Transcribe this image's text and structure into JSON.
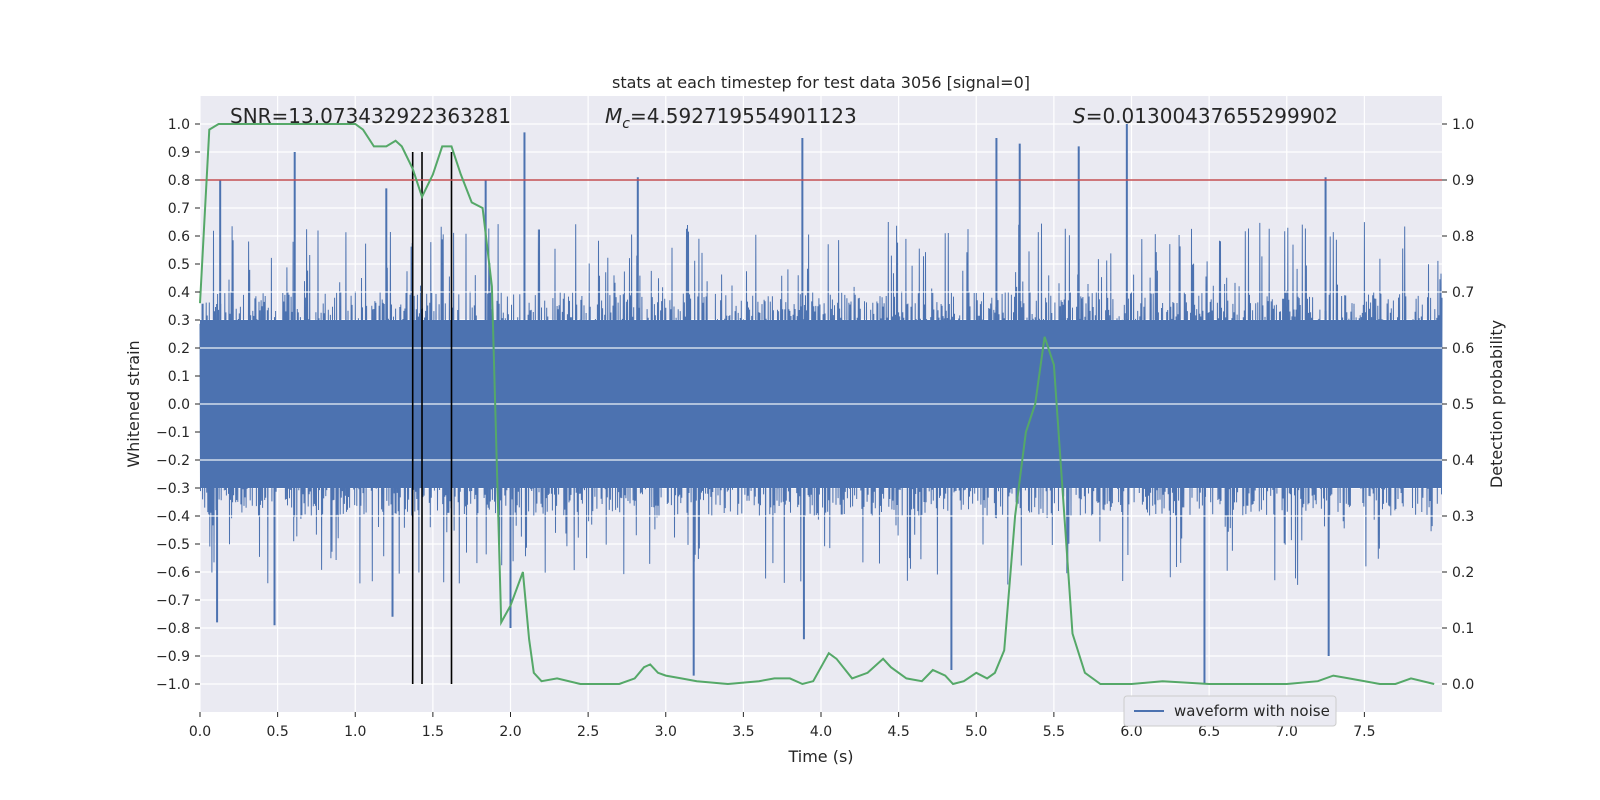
{
  "chart_data": {
    "type": "line",
    "title": "stats at each timestep for test data 3056 [signal=0]",
    "xlabel": "Time (s)",
    "ylabel": "Whitened strain",
    "y2label": "Detection probability",
    "xlim": [
      0.0,
      8.0
    ],
    "ylim": [
      -1.1,
      1.1
    ],
    "y2lim": [
      -0.05,
      1.05
    ],
    "xticks": [
      0.0,
      0.5,
      1.0,
      1.5,
      2.0,
      2.5,
      3.0,
      3.5,
      4.0,
      4.5,
      5.0,
      5.5,
      6.0,
      6.5,
      7.0,
      7.5
    ],
    "xtick_labels": [
      "0.0",
      "0.5",
      "1.0",
      "1.5",
      "2.0",
      "2.5",
      "3.0",
      "3.5",
      "4.0",
      "4.5",
      "5.0",
      "5.5",
      "6.0",
      "6.5",
      "7.0",
      "7.5"
    ],
    "yticks": [
      1.0,
      0.9,
      0.8,
      0.7,
      0.6,
      0.5,
      0.4,
      0.3,
      0.2,
      0.1,
      0.0,
      -0.1,
      -0.2,
      -0.3,
      -0.4,
      -0.5,
      -0.6,
      -0.7,
      -0.8,
      -0.9,
      -1.0
    ],
    "ytick_labels": [
      "1.0",
      "0.9",
      "0.8",
      "0.7",
      "0.6",
      "0.5",
      "0.4",
      "0.3",
      "0.2",
      "0.1",
      "0.0",
      "−0.1",
      "−0.2",
      "−0.3",
      "−0.4",
      "−0.5",
      "−0.6",
      "−0.7",
      "−0.8",
      "−0.9",
      "−1.0"
    ],
    "y2ticks": [
      1.0,
      0.9,
      0.8,
      0.7,
      0.6,
      0.5,
      0.4,
      0.3,
      0.2,
      0.1,
      0.0
    ],
    "y2tick_labels": [
      "1.0",
      "0.9",
      "0.8",
      "0.7",
      "0.6",
      "0.5",
      "0.4",
      "0.3",
      "0.2",
      "0.1",
      "0.0"
    ],
    "grid": true,
    "legend_position": "bottom-right",
    "annotations": {
      "snr": "SNR=13.073432922363281",
      "mc_symbol": "M",
      "mc_sub": "c",
      "mc_value": "=4.592719554901123",
      "s_symbol": "S",
      "s_value": "=0.01300437655299902"
    },
    "threshold_line": {
      "y2": 0.9,
      "color": "#c44e52"
    },
    "vertical_markers": {
      "x": [
        1.37,
        1.43,
        1.62
      ],
      "y_range": [
        -1.0,
        0.9
      ],
      "color": "#000000"
    },
    "series": [
      {
        "name": "waveform with noise",
        "color": "#4c72b0",
        "kind": "dense-noise-strain",
        "envelope": {
          "typical_abs": 0.4,
          "min": -0.99,
          "max": 1.0
        },
        "peaks": [
          {
            "x": 0.13,
            "y": 0.8
          },
          {
            "x": 0.61,
            "y": 0.9
          },
          {
            "x": 1.2,
            "y": 0.77
          },
          {
            "x": 1.84,
            "y": 0.8
          },
          {
            "x": 2.09,
            "y": 0.97
          },
          {
            "x": 2.82,
            "y": 0.81
          },
          {
            "x": 3.88,
            "y": 0.95
          },
          {
            "x": 5.13,
            "y": 0.95
          },
          {
            "x": 5.28,
            "y": 0.93
          },
          {
            "x": 5.66,
            "y": 0.92
          },
          {
            "x": 5.97,
            "y": 1.0
          },
          {
            "x": 7.25,
            "y": 0.81
          }
        ],
        "troughs": [
          {
            "x": 0.11,
            "y": -0.78
          },
          {
            "x": 0.48,
            "y": -0.79
          },
          {
            "x": 1.24,
            "y": -0.76
          },
          {
            "x": 2.0,
            "y": -0.8
          },
          {
            "x": 3.18,
            "y": -0.97
          },
          {
            "x": 3.89,
            "y": -0.84
          },
          {
            "x": 4.84,
            "y": -0.95
          },
          {
            "x": 6.47,
            "y": -1.0
          },
          {
            "x": 7.27,
            "y": -0.9
          }
        ]
      },
      {
        "name": "",
        "color": "#55a868",
        "axis": "right",
        "x": [
          0.0,
          0.06,
          0.12,
          0.5,
          0.8,
          1.0,
          1.05,
          1.12,
          1.2,
          1.26,
          1.3,
          1.37,
          1.43,
          1.5,
          1.56,
          1.62,
          1.68,
          1.75,
          1.82,
          1.88,
          1.94,
          2.0,
          2.08,
          2.12,
          2.15,
          2.2,
          2.3,
          2.45,
          2.7,
          2.8,
          2.86,
          2.9,
          2.95,
          3.0,
          3.1,
          3.2,
          3.4,
          3.6,
          3.7,
          3.8,
          3.88,
          3.95,
          4.05,
          4.1,
          4.2,
          4.3,
          4.4,
          4.45,
          4.55,
          4.65,
          4.72,
          4.8,
          4.85,
          4.92,
          5.0,
          5.07,
          5.12,
          5.18,
          5.25,
          5.32,
          5.38,
          5.44,
          5.5,
          5.56,
          5.62,
          5.7,
          5.8,
          6.0,
          6.2,
          6.5,
          7.0,
          7.2,
          7.3,
          7.4,
          7.6,
          7.7,
          7.8,
          7.95
        ],
        "y": [
          0.68,
          0.99,
          1.0,
          1.0,
          1.0,
          1.0,
          0.99,
          0.96,
          0.96,
          0.97,
          0.96,
          0.92,
          0.87,
          0.91,
          0.96,
          0.96,
          0.91,
          0.86,
          0.85,
          0.71,
          0.11,
          0.14,
          0.2,
          0.08,
          0.02,
          0.005,
          0.01,
          0.0,
          0.0,
          0.01,
          0.03,
          0.035,
          0.02,
          0.015,
          0.01,
          0.005,
          0.0,
          0.005,
          0.01,
          0.01,
          0.0,
          0.005,
          0.055,
          0.045,
          0.01,
          0.02,
          0.045,
          0.03,
          0.01,
          0.005,
          0.025,
          0.015,
          0.0,
          0.005,
          0.02,
          0.01,
          0.02,
          0.06,
          0.3,
          0.45,
          0.5,
          0.62,
          0.57,
          0.33,
          0.09,
          0.02,
          0.0,
          0.0,
          0.005,
          0.0,
          0.0,
          0.005,
          0.015,
          0.01,
          0.0,
          0.0,
          0.01,
          0.0
        ]
      }
    ]
  }
}
